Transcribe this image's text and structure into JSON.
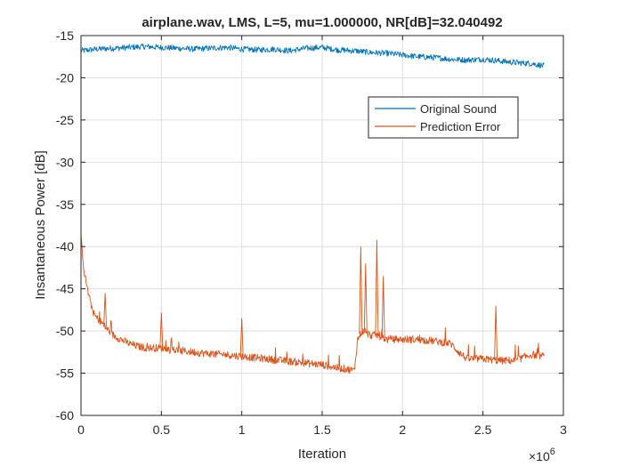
{
  "chart_data": {
    "type": "line",
    "title": "airplane.wav, LMS, L=5, mu=1.000000, NR[dB]=32.040492",
    "xlabel": "Iteration",
    "ylabel": "Insantaneous Power [dB]",
    "x_exponent_label": "×10",
    "x_exponent_power": "6",
    "xlim": [
      0,
      3
    ],
    "ylim": [
      -60,
      -15
    ],
    "xticks": [
      0,
      0.5,
      1,
      1.5,
      2,
      2.5,
      3
    ],
    "xtick_labels": [
      "0",
      "0.5",
      "1",
      "1.5",
      "2",
      "2.5",
      "3"
    ],
    "yticks": [
      -60,
      -55,
      -50,
      -45,
      -40,
      -35,
      -30,
      -25,
      -20,
      -15
    ],
    "ytick_labels": [
      "-60",
      "-55",
      "-50",
      "-45",
      "-40",
      "-35",
      "-30",
      "-25",
      "-20",
      "-15"
    ],
    "grid": true,
    "legend_position": "upper-right",
    "series": [
      {
        "name": "Original Sound",
        "color": "#0072BD",
        "x": [
          0,
          0.1,
          0.2,
          0.3,
          0.4,
          0.5,
          0.6,
          0.7,
          0.8,
          0.9,
          1.0,
          1.1,
          1.2,
          1.3,
          1.4,
          1.5,
          1.6,
          1.7,
          1.8,
          1.9,
          2.0,
          2.1,
          2.2,
          2.3,
          2.4,
          2.5,
          2.6,
          2.7,
          2.8,
          2.88
        ],
        "y": [
          -16.8,
          -16.6,
          -16.5,
          -16.4,
          -16.3,
          -16.4,
          -16.5,
          -16.6,
          -16.5,
          -16.4,
          -16.6,
          -16.7,
          -16.6,
          -16.8,
          -16.5,
          -16.4,
          -16.7,
          -16.8,
          -17.0,
          -17.1,
          -17.3,
          -17.5,
          -17.6,
          -17.8,
          -17.9,
          -17.8,
          -18.0,
          -18.2,
          -18.3,
          -18.6
        ]
      },
      {
        "name": "Prediction Error",
        "color": "#D95319",
        "x": [
          0,
          0.02,
          0.05,
          0.08,
          0.1,
          0.13,
          0.15,
          0.2,
          0.25,
          0.3,
          0.35,
          0.4,
          0.45,
          0.5,
          0.55,
          0.6,
          0.7,
          0.8,
          0.9,
          1.0,
          1.1,
          1.2,
          1.3,
          1.4,
          1.5,
          1.55,
          1.6,
          1.65,
          1.7,
          1.72,
          1.75,
          1.8,
          1.85,
          1.9,
          1.95,
          2.0,
          2.1,
          2.2,
          2.3,
          2.35,
          2.4,
          2.5,
          2.6,
          2.7,
          2.8,
          2.88
        ],
        "y": [
          -39,
          -43,
          -46,
          -48,
          -48.5,
          -49,
          -49.5,
          -50.5,
          -51,
          -51.5,
          -51.8,
          -52,
          -52,
          -52,
          -52.2,
          -52.3,
          -52.5,
          -52.7,
          -52.8,
          -53,
          -53.2,
          -53.4,
          -53.6,
          -53.8,
          -54,
          -54.2,
          -54.4,
          -54.5,
          -54.7,
          -51,
          -50,
          -50.5,
          -50.5,
          -51,
          -51,
          -51,
          -51,
          -51.2,
          -51.5,
          -52.5,
          -53.3,
          -53.3,
          -53.5,
          -53.5,
          -52.8,
          -53
        ]
      }
    ],
    "annotations": [
      {
        "series": "Prediction Error",
        "x": 0.15,
        "y": -45.5
      },
      {
        "series": "Prediction Error",
        "x": 0.5,
        "y": -47.8
      },
      {
        "series": "Prediction Error",
        "x": 1.0,
        "y": -48.5
      },
      {
        "series": "Prediction Error",
        "x": 1.74,
        "y": -40.0
      },
      {
        "series": "Prediction Error",
        "x": 1.77,
        "y": -42.0
      },
      {
        "series": "Prediction Error",
        "x": 1.84,
        "y": -39.2
      },
      {
        "series": "Prediction Error",
        "x": 1.88,
        "y": -43.5
      },
      {
        "series": "Prediction Error",
        "x": 2.58,
        "y": -47.0
      }
    ]
  }
}
